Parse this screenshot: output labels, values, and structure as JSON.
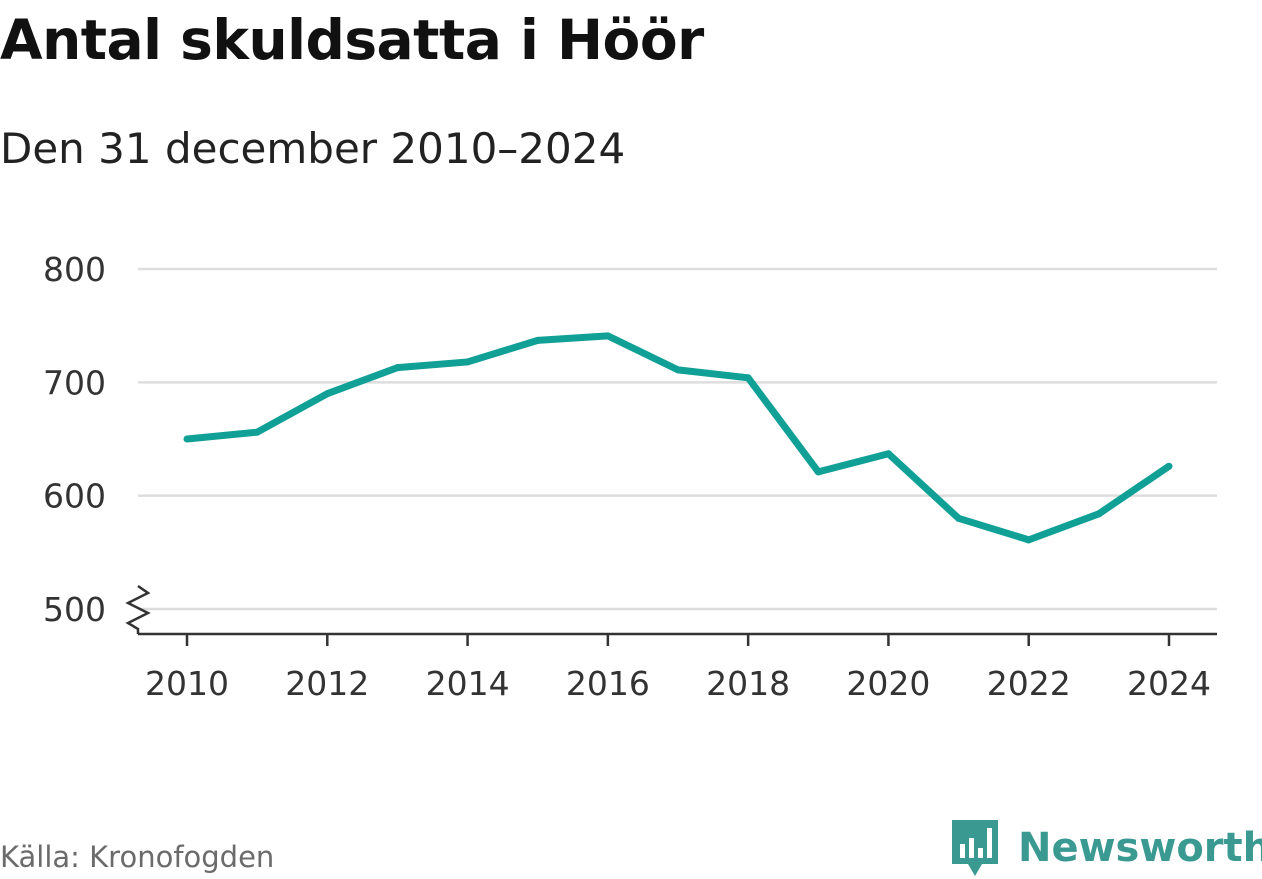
{
  "title": "Antal skuldsatta i Höör",
  "subtitle": "Den 31 december 2010–2024",
  "source": "Källa: Kronofogden",
  "brand": {
    "name": "Newsworthy",
    "icon": "newsworthy-logo-icon"
  },
  "colors": {
    "line": "#11a096",
    "grid": "#dddddd",
    "axis": "#333333",
    "brand": "#3a9a92"
  },
  "chart_data": {
    "type": "line",
    "x": [
      2010,
      2011,
      2012,
      2013,
      2014,
      2015,
      2016,
      2017,
      2018,
      2019,
      2020,
      2021,
      2022,
      2023,
      2024
    ],
    "series": [
      {
        "values": [
          650,
          656,
          690,
          713,
          718,
          737,
          741,
          711,
          704,
          621,
          637,
          580,
          561,
          584,
          626
        ]
      }
    ],
    "x_ticks": [
      "2010",
      "2012",
      "2014",
      "2016",
      "2018",
      "2020",
      "2022",
      "2024"
    ],
    "y_ticks": [
      "500",
      "600",
      "700",
      "800"
    ],
    "ylim": [
      500,
      800
    ],
    "xlim": [
      2010,
      2024
    ],
    "grid": true,
    "axis_break": true,
    "xlabel": "",
    "ylabel": ""
  }
}
